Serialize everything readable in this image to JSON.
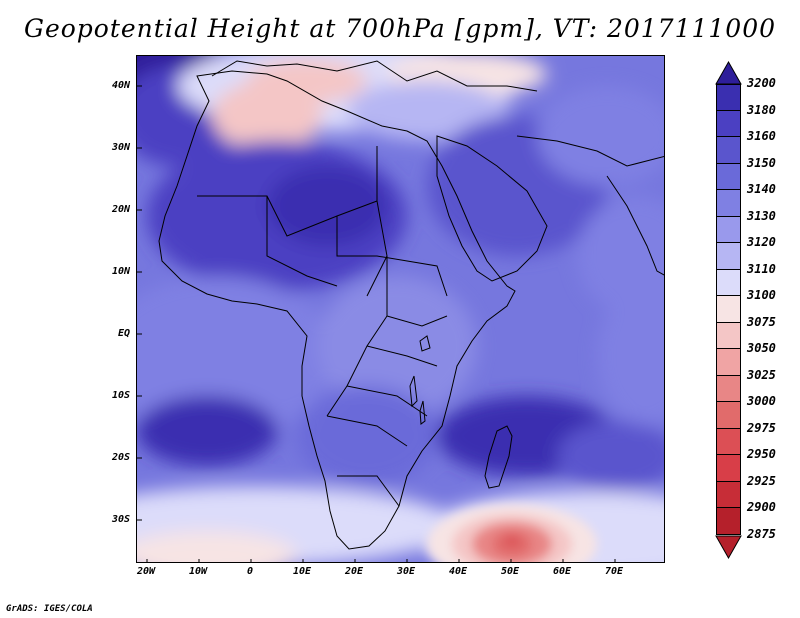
{
  "title": "Geopotential Height at 700hPa [gpm], VT: 2017111000",
  "footer": "GrADS: IGES/COLA",
  "map": {
    "lat_labels": [
      "40N",
      "30N",
      "20N",
      "10N",
      "EQ",
      "10S",
      "20S",
      "30S"
    ],
    "lon_labels": [
      "20W",
      "10W",
      "0",
      "10E",
      "20E",
      "30E",
      "40E",
      "50E",
      "60E",
      "70E"
    ],
    "background_color": "#6a6ad9",
    "low_center_color": "#e2474a"
  },
  "colorbar": {
    "levels": [
      "3200",
      "3180",
      "3160",
      "3150",
      "3140",
      "3130",
      "3120",
      "3110",
      "3100",
      "3075",
      "3050",
      "3025",
      "3000",
      "2975",
      "2950",
      "2925",
      "2900",
      "2875"
    ],
    "colors": [
      "#2e1e9a",
      "#3a2fb0",
      "#4b40c2",
      "#5a55cd",
      "#6a6ad9",
      "#7f80e3",
      "#9999ec",
      "#b6b6f3",
      "#dcdcfa",
      "#f7e4e4",
      "#f4c6c6",
      "#f0a4a4",
      "#e88686",
      "#e16b6b",
      "#dc4f55",
      "#d83e48",
      "#c72d37",
      "#b5202b"
    ]
  }
}
